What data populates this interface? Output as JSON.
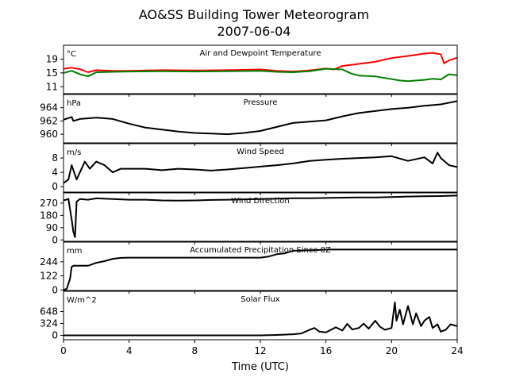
{
  "chart_data": {
    "type": "line",
    "title": "AO&SS Building Tower Meteorogram",
    "subtitle": "2007-06-04",
    "xlabel": "Time (UTC)",
    "xlim": [
      0,
      24
    ],
    "xticks": [
      "0",
      "4",
      "8",
      "12",
      "16",
      "20",
      "24"
    ],
    "panels": [
      {
        "title": "Air and Dewpoint Temperature",
        "unit": "°C",
        "ylim": [
          9,
          23
        ],
        "yticks": [
          11,
          15,
          19
        ],
        "series": [
          {
            "color": "#ff0000",
            "x": [
              0,
              0.5,
              1,
              1.5,
              2,
              3,
              4,
              6,
              8,
              10,
              12,
              13,
              14,
              15,
              16,
              16.5,
              17,
              18,
              19,
              20,
              21,
              22,
              22.5,
              23,
              23.2,
              23.5,
              24
            ],
            "y": [
              16.2,
              16.5,
              16.1,
              15.2,
              15.8,
              15.6,
              15.6,
              15.8,
              15.7,
              15.8,
              16.0,
              15.6,
              15.4,
              15.7,
              16.3,
              16.0,
              17.0,
              17.6,
              18.2,
              19.3,
              19.9,
              20.6,
              20.8,
              20.4,
              17.8,
              18.6,
              19.4
            ]
          },
          {
            "color": "#008000",
            "x": [
              0,
              0.5,
              1,
              1.5,
              2,
              3,
              4,
              6,
              8,
              10,
              12,
              13,
              14,
              15,
              16,
              17,
              17.5,
              18,
              19,
              20,
              20.5,
              21,
              22,
              22.5,
              23,
              23.5,
              24
            ],
            "y": [
              15.0,
              15.6,
              14.6,
              14.0,
              15.2,
              15.3,
              15.4,
              15.5,
              15.4,
              15.5,
              15.6,
              15.3,
              15.2,
              15.5,
              16.2,
              16.0,
              14.9,
              14.2,
              14.0,
              13.2,
              12.8,
              12.6,
              13.0,
              13.3,
              13.1,
              14.6,
              14.3
            ]
          }
        ]
      },
      {
        "title": "Pressure",
        "unit": "hPa",
        "ylim": [
          958.7,
          966.0
        ],
        "yticks": [
          960,
          962,
          964
        ],
        "series": [
          {
            "color": "#000000",
            "x": [
              0,
              0.5,
              0.6,
              1,
              2,
              3,
              4,
              5,
              6,
              7,
              8,
              9,
              10,
              11,
              12,
              13,
              14,
              15,
              16,
              17,
              18,
              19,
              20,
              21,
              22,
              23,
              24
            ],
            "y": [
              962.2,
              962.6,
              962.0,
              962.3,
              962.5,
              962.3,
              961.6,
              961.0,
              960.7,
              960.4,
              960.2,
              960.1,
              960.0,
              960.2,
              960.5,
              961.1,
              961.7,
              961.9,
              962.1,
              962.7,
              963.2,
              963.5,
              963.8,
              964.0,
              964.3,
              964.5,
              965.0
            ]
          }
        ]
      },
      {
        "title": "Wind Speed",
        "unit": "m/s",
        "ylim": [
          -1.5,
          12
        ],
        "yticks": [
          0,
          4,
          8
        ],
        "series": [
          {
            "color": "#000000",
            "x": [
              0,
              0.3,
              0.5,
              0.8,
              1,
              1.3,
              1.6,
              2,
              2.5,
              3,
              3.5,
              4,
              5,
              6,
              7,
              8,
              9,
              10,
              11,
              12,
              13,
              14,
              15,
              16,
              17,
              18,
              19,
              20,
              21,
              22,
              22.5,
              22.8,
              23,
              23.5,
              24
            ],
            "y": [
              1,
              2,
              6,
              2,
              4,
              7,
              5,
              7,
              6,
              4,
              5,
              5,
              5,
              4.6,
              5,
              4.8,
              4.5,
              4.8,
              5.2,
              5.6,
              6,
              6.5,
              7.2,
              7.5,
              7.8,
              8,
              8.2,
              8.5,
              7.2,
              8.2,
              6.5,
              9.5,
              8,
              6,
              5.5
            ]
          }
        ]
      },
      {
        "title": "Wind Direction",
        "unit": "",
        "ylim": [
          -10,
          345
        ],
        "yticks": [
          0,
          90,
          180,
          270
        ],
        "series": [
          {
            "color": "#000000",
            "x": [
              0,
              0.3,
              0.5,
              0.6,
              0.7,
              0.8,
              1,
              1.5,
              2,
              3,
              4,
              5,
              6,
              7,
              8,
              9,
              10,
              11,
              12,
              13,
              14,
              15,
              16,
              17,
              18,
              19,
              20,
              21,
              22,
              23,
              24
            ],
            "y": [
              290,
              300,
              150,
              60,
              20,
              280,
              300,
              295,
              305,
              300,
              295,
              295,
              290,
              288,
              290,
              293,
              295,
              298,
              300,
              303,
              306,
              306,
              308,
              310,
              312,
              312,
              315,
              318,
              320,
              322,
              325
            ]
          }
        ]
      },
      {
        "title": "Accumulated Precipitation Since 0Z",
        "unit": "mm",
        "ylim": [
          -5,
          415
        ],
        "yticks": [
          0,
          122,
          244
        ],
        "series": [
          {
            "color": "#000000",
            "x": [
              0,
              0.2,
              0.4,
              0.5,
              0.6,
              1,
              1.5,
              2,
              2.5,
              3,
              3.5,
              4,
              5,
              6,
              7,
              8,
              9,
              10,
              11,
              12,
              12.5,
              13,
              13.5,
              14,
              14.5,
              15,
              15.5,
              16,
              17,
              18,
              20,
              22,
              24
            ],
            "y": [
              0,
              10,
              100,
              200,
              210,
              210,
              210,
              235,
              250,
              270,
              278,
              280,
              280,
              280,
              280,
              280,
              280,
              280,
              280,
              280,
              290,
              310,
              318,
              340,
              342,
              345,
              346,
              350,
              350,
              350,
              350,
              350,
              350
            ]
          }
        ]
      },
      {
        "title": "Solar Flux",
        "unit": "W/m^2",
        "ylim": [
          -120,
          1200
        ],
        "yticks": [
          0,
          324,
          648
        ],
        "series": [
          {
            "color": "#000000",
            "x": [
              0,
              2,
              4,
              6,
              8,
              10,
              12,
              13,
              14,
              14.5,
              15,
              15.3,
              15.6,
              16,
              16.3,
              16.6,
              17,
              17.3,
              17.6,
              18,
              18.3,
              18.6,
              19,
              19.3,
              19.6,
              20,
              20.2,
              20.3,
              20.5,
              20.7,
              21,
              21.3,
              21.5,
              21.8,
              22,
              22.3,
              22.5,
              22.8,
              23,
              23.3,
              23.6,
              24
            ],
            "y": [
              0,
              0,
              0,
              0,
              0,
              0,
              0,
              10,
              30,
              50,
              150,
              200,
              100,
              80,
              150,
              220,
              130,
              310,
              160,
              200,
              320,
              180,
              400,
              230,
              150,
              200,
              900,
              400,
              700,
              300,
              800,
              300,
              600,
              250,
              400,
              500,
              200,
              300,
              100,
              150,
              300,
              250
            ]
          }
        ]
      }
    ]
  }
}
